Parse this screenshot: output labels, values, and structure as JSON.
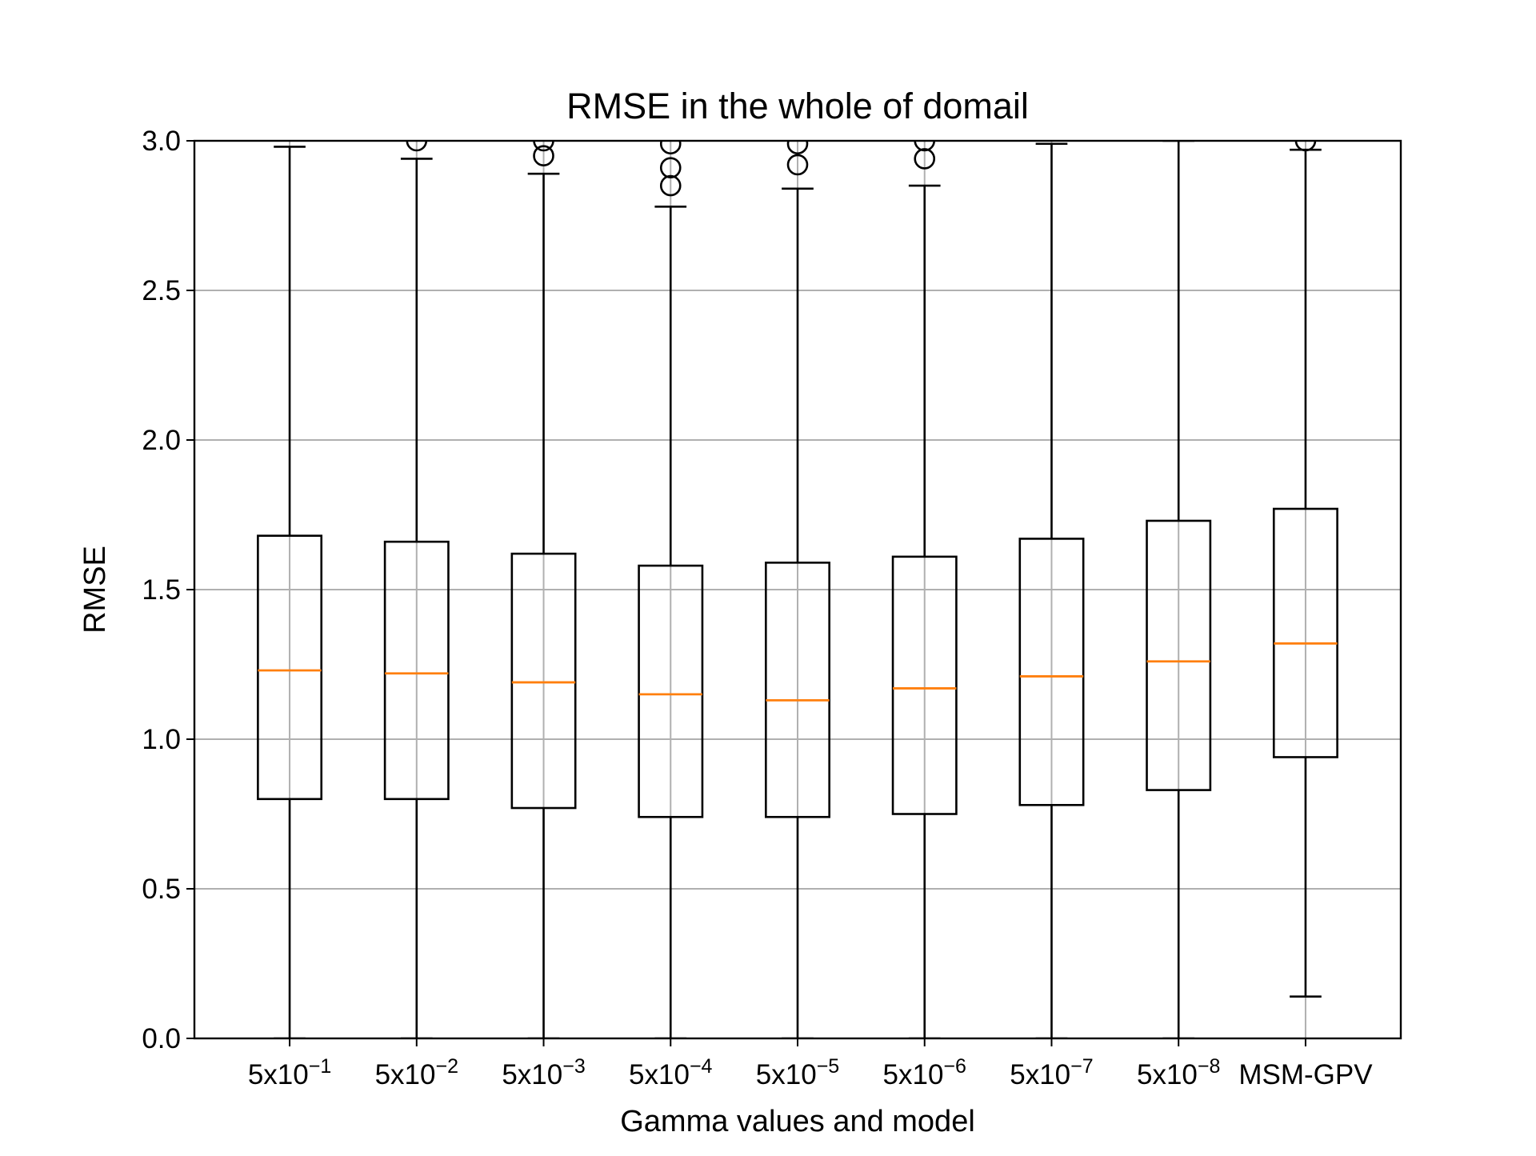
{
  "chart_data": {
    "type": "box",
    "title": "RMSE in the whole of domail",
    "xlabel": "Gamma values and model",
    "ylabel": "RMSE",
    "ylim": [
      0,
      3.0
    ],
    "yticks": [
      "0.0",
      "0.5",
      "1.0",
      "1.5",
      "2.0",
      "2.5",
      "3.0"
    ],
    "grid": true,
    "colors": {
      "box": "#000000",
      "median": "#ff7f0e",
      "grid": "#b0b0b0"
    },
    "categories": [
      {
        "base": "5x10",
        "exp": "−1"
      },
      {
        "base": "5x10",
        "exp": "−2"
      },
      {
        "base": "5x10",
        "exp": "−3"
      },
      {
        "base": "5x10",
        "exp": "−4"
      },
      {
        "base": "5x10",
        "exp": "−5"
      },
      {
        "base": "5x10",
        "exp": "−6"
      },
      {
        "base": "5x10",
        "exp": "−7"
      },
      {
        "base": "5x10",
        "exp": "−8"
      },
      {
        "base": "MSM-GPV",
        "exp": ""
      }
    ],
    "boxes": [
      {
        "whisker_low": 0.0,
        "q1": 0.8,
        "median": 1.23,
        "q3": 1.68,
        "whisker_high": 2.98,
        "outliers": []
      },
      {
        "whisker_low": 0.0,
        "q1": 0.8,
        "median": 1.22,
        "q3": 1.66,
        "whisker_high": 2.94,
        "outliers": [
          3.0
        ]
      },
      {
        "whisker_low": 0.0,
        "q1": 0.77,
        "median": 1.19,
        "q3": 1.62,
        "whisker_high": 2.89,
        "outliers": [
          2.95,
          3.0
        ]
      },
      {
        "whisker_low": 0.0,
        "q1": 0.74,
        "median": 1.15,
        "q3": 1.58,
        "whisker_high": 2.78,
        "outliers": [
          2.85,
          2.91,
          2.99
        ]
      },
      {
        "whisker_low": 0.0,
        "q1": 0.74,
        "median": 1.13,
        "q3": 1.59,
        "whisker_high": 2.84,
        "outliers": [
          2.92,
          2.99
        ]
      },
      {
        "whisker_low": 0.0,
        "q1": 0.75,
        "median": 1.17,
        "q3": 1.61,
        "whisker_high": 2.85,
        "outliers": [
          2.94,
          3.0
        ]
      },
      {
        "whisker_low": 0.0,
        "q1": 0.78,
        "median": 1.21,
        "q3": 1.67,
        "whisker_high": 2.99,
        "outliers": []
      },
      {
        "whisker_low": 0.0,
        "q1": 0.83,
        "median": 1.26,
        "q3": 1.73,
        "whisker_high": 3.0,
        "outliers": []
      },
      {
        "whisker_low": 0.14,
        "q1": 0.94,
        "median": 1.32,
        "q3": 1.77,
        "whisker_high": 2.97,
        "outliers": [
          3.0
        ]
      }
    ]
  }
}
